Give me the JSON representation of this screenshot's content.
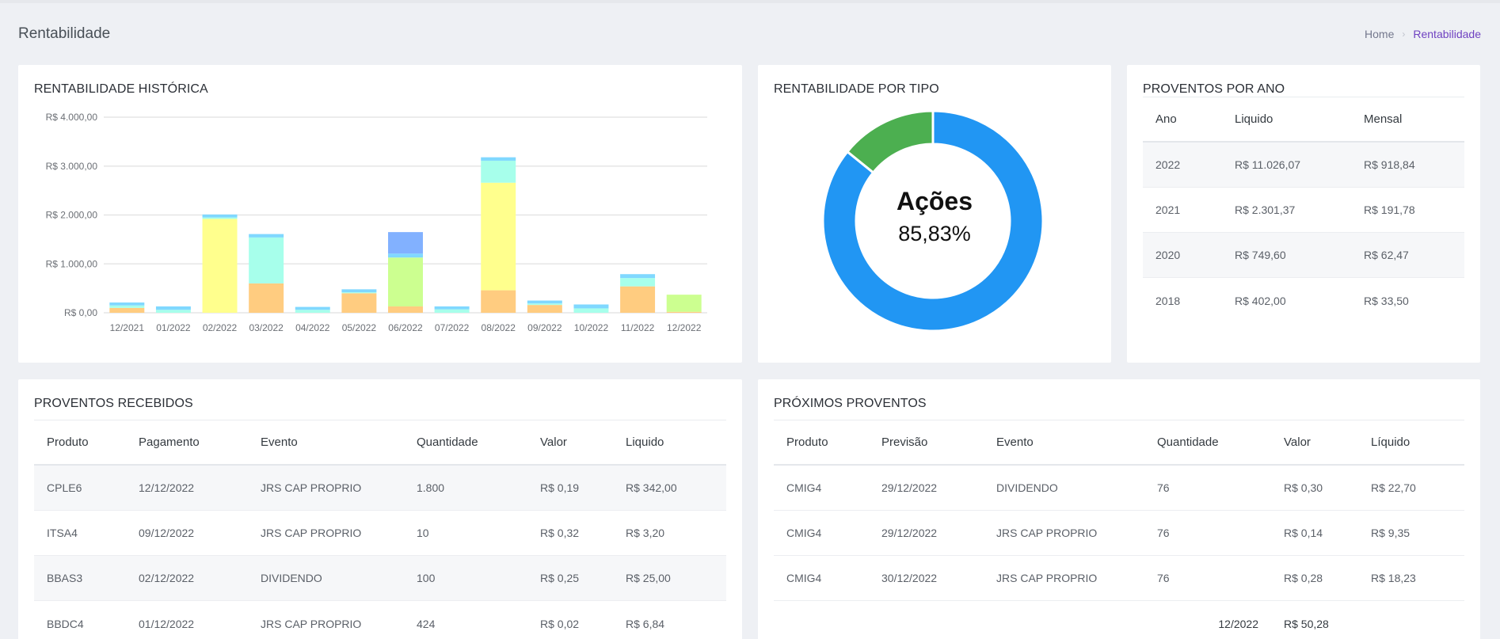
{
  "page": {
    "title": "Rentabilidade",
    "breadcrumb_home": "Home",
    "breadcrumb_sep": "›",
    "breadcrumb_current": "Rentabilidade"
  },
  "hist": {
    "title": "RENTABILIDADE HISTÓRICA"
  },
  "chart_data": [
    {
      "type": "bar",
      "title": "RENTABILIDADE HISTÓRICA",
      "stacked": true,
      "categories": [
        "12/2021",
        "01/2022",
        "02/2022",
        "03/2022",
        "04/2022",
        "05/2022",
        "06/2022",
        "07/2022",
        "08/2022",
        "09/2022",
        "10/2022",
        "11/2022",
        "12/2022"
      ],
      "yticks": [
        "R$ 0,00",
        "R$ 1.000,00",
        "R$ 2.000,00",
        "R$ 3.000,00",
        "R$ 4.000,00"
      ],
      "ylim": [
        0,
        4000
      ],
      "grid": true,
      "series": [
        {
          "color": "#ffcc80",
          "values": [
            100,
            0,
            0,
            600,
            0,
            400,
            130,
            0,
            460,
            160,
            0,
            540,
            20
          ]
        },
        {
          "color": "#ccff90",
          "values": [
            0,
            0,
            0,
            0,
            0,
            0,
            1000,
            0,
            0,
            0,
            0,
            0,
            350
          ]
        },
        {
          "color": "#ffff8d",
          "values": [
            0,
            0,
            1920,
            0,
            0,
            0,
            0,
            0,
            2200,
            0,
            0,
            0,
            0
          ]
        },
        {
          "color": "#a7ffeb",
          "values": [
            50,
            60,
            30,
            940,
            60,
            20,
            0,
            70,
            450,
            30,
            90,
            170,
            0
          ]
        },
        {
          "color": "#80d8ff",
          "values": [
            60,
            70,
            60,
            70,
            60,
            60,
            80,
            60,
            70,
            60,
            80,
            80,
            0
          ]
        },
        {
          "color": "#82b1ff",
          "values": [
            0,
            0,
            0,
            0,
            0,
            0,
            440,
            0,
            0,
            0,
            0,
            0,
            0
          ]
        }
      ]
    },
    {
      "type": "pie",
      "variant": "doughnut",
      "title": "RENTABILIDADE POR TIPO",
      "center_label": "Ações",
      "center_value": "85,83%",
      "slices": [
        {
          "label": "Ações",
          "value": 85.83,
          "color": "#2196f3"
        },
        {
          "label": "",
          "value": 14.17,
          "color": "#4caf50"
        }
      ]
    }
  ],
  "tipo": {
    "title": "RENTABILIDADE POR TIPO",
    "center_label": "Ações",
    "center_value": "85,83%"
  },
  "ano": {
    "title": "PROVENTOS POR ANO",
    "headers": [
      "Ano",
      "Liquido",
      "Mensal"
    ],
    "rows": [
      [
        "2022",
        "R$ 11.026,07",
        "R$ 918,84"
      ],
      [
        "2021",
        "R$ 2.301,37",
        "R$ 191,78"
      ],
      [
        "2020",
        "R$ 749,60",
        "R$ 62,47"
      ],
      [
        "2018",
        "R$ 402,00",
        "R$ 33,50"
      ]
    ]
  },
  "recebidos": {
    "title": "PROVENTOS RECEBIDOS",
    "headers": [
      "Produto",
      "Pagamento",
      "Evento",
      "Quantidade",
      "Valor",
      "Liquido"
    ],
    "rows": [
      [
        "CPLE6",
        "12/12/2022",
        "JRS CAP PROPRIO",
        "1.800",
        "R$ 0,19",
        "R$ 342,00"
      ],
      [
        "ITSA4",
        "09/12/2022",
        "JRS CAP PROPRIO",
        "10",
        "R$ 0,32",
        "R$ 3,20"
      ],
      [
        "BBAS3",
        "02/12/2022",
        "DIVIDENDO",
        "100",
        "R$ 0,25",
        "R$ 25,00"
      ],
      [
        "BBDC4",
        "01/12/2022",
        "JRS CAP PROPRIO",
        "424",
        "R$ 0,02",
        "R$ 6,84"
      ]
    ]
  },
  "proximos": {
    "title": "PRÓXIMOS PROVENTOS",
    "headers": [
      "Produto",
      "Previsão",
      "Evento",
      "Quantidade",
      "Valor",
      "Líquido"
    ],
    "rows": [
      [
        "CMIG4",
        "29/12/2022",
        "DIVIDENDO",
        "76",
        "R$ 0,30",
        "R$ 22,70"
      ],
      [
        "CMIG4",
        "29/12/2022",
        "JRS CAP PROPRIO",
        "76",
        "R$ 0,14",
        "R$ 9,35"
      ],
      [
        "CMIG4",
        "30/12/2022",
        "JRS CAP PROPRIO",
        "76",
        "R$ 0,28",
        "R$ 18,23"
      ]
    ],
    "total_period": "12/2022",
    "total_value": "R$ 50,28"
  }
}
